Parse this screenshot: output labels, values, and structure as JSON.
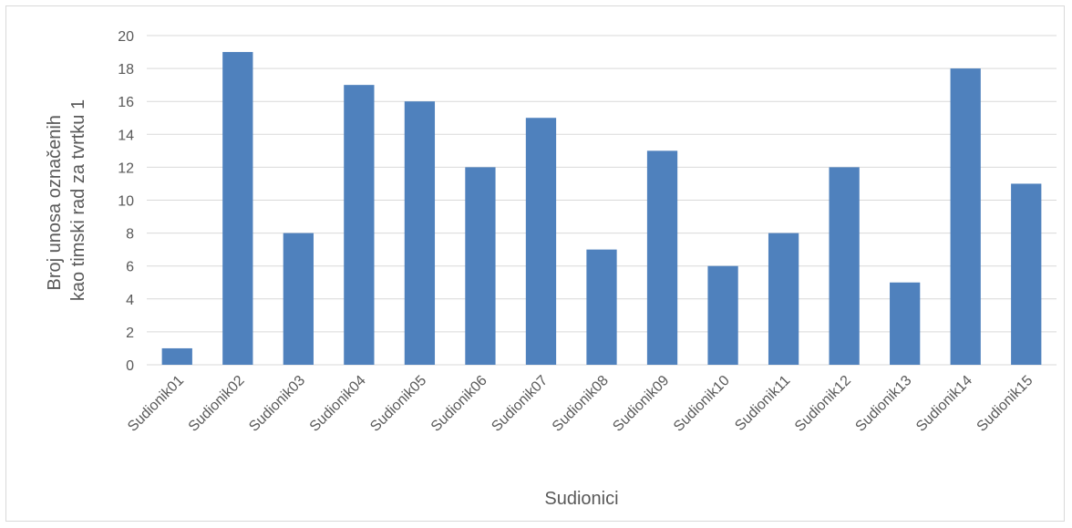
{
  "chart_data": {
    "type": "bar",
    "title": "",
    "xlabel": "Sudionici",
    "ylabel_lines": [
      "Broj unosa označenih",
      "kao timski rad za tvrtku 1"
    ],
    "categories": [
      "Sudionik01",
      "Sudionik02",
      "Sudionik03",
      "Sudionik04",
      "Sudionik05",
      "Sudionik06",
      "Sudionik07",
      "Sudionik08",
      "Sudionik09",
      "Sudionik10",
      "Sudionik11",
      "Sudionik12",
      "Sudionik13",
      "Sudionik14",
      "Sudionik15"
    ],
    "series": [
      {
        "values": [
          1,
          19,
          8,
          17,
          16,
          12,
          15,
          7,
          13,
          6,
          8,
          12,
          5,
          18,
          11
        ],
        "color": "#4f81bd"
      }
    ],
    "ylim": [
      0,
      20
    ],
    "yticks": [
      0,
      2,
      4,
      6,
      8,
      10,
      12,
      14,
      16,
      18,
      20
    ],
    "grid": true,
    "gridline_color": "#d9d9d9",
    "legend": "none"
  }
}
